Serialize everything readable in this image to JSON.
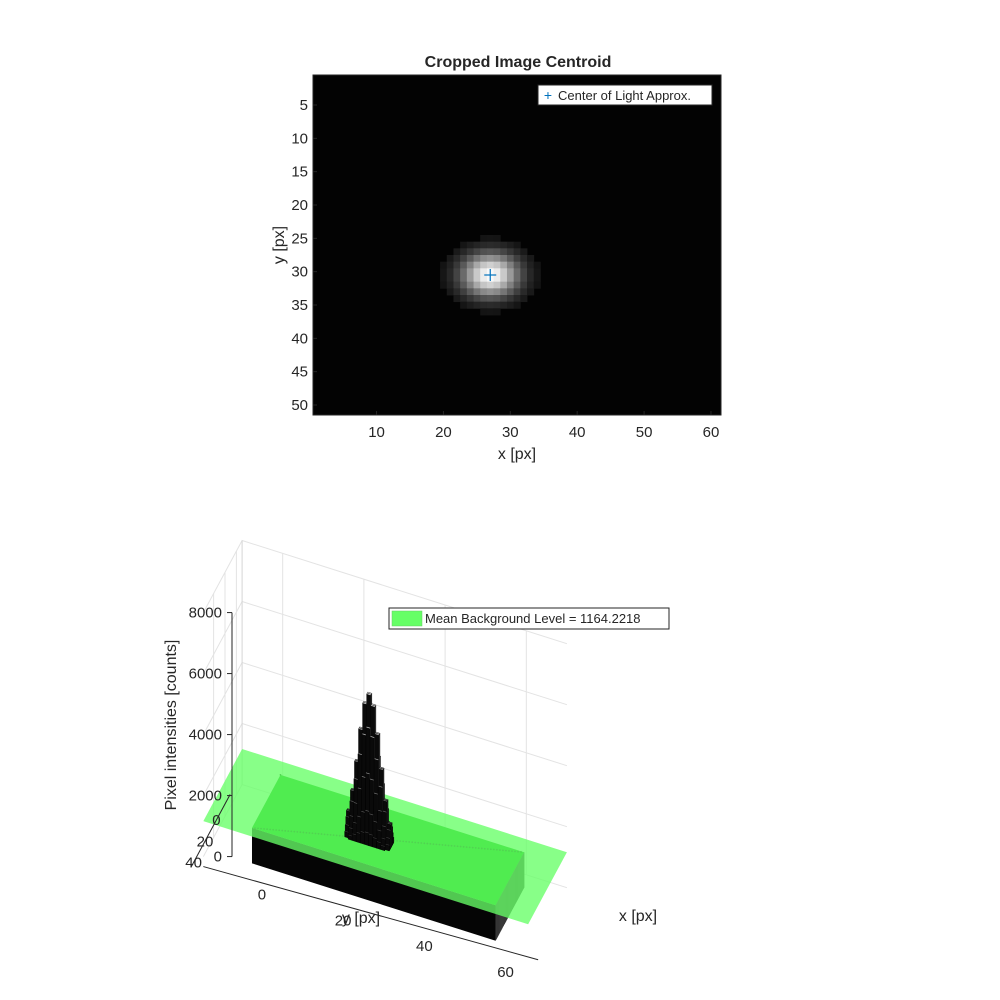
{
  "chart_data": [
    {
      "type": "heatmap",
      "title": "Cropped Image Centroid",
      "xlabel": "x [px]",
      "ylabel": "y [px]",
      "xlim": [
        0.5,
        61.5
      ],
      "ylim": [
        0.5,
        51.5
      ],
      "y_reversed": true,
      "xticks": [
        10,
        20,
        30,
        40,
        50,
        60
      ],
      "yticks": [
        5,
        10,
        15,
        20,
        25,
        30,
        35,
        40,
        45,
        50
      ],
      "colormap": "gray",
      "spot": {
        "x": 27,
        "y": 30.5,
        "sigma_x": 2.6,
        "sigma_y": 2.0
      },
      "series": [
        {
          "name": "Center of Light Approx.",
          "x": 27,
          "y": 30.5,
          "marker": "+",
          "color": "#0072BD"
        }
      ],
      "legend_position": "top-right"
    },
    {
      "type": "surface",
      "ylabel": "Pixel intensities [counts]",
      "xlabel": "x [px]",
      "zlabel_y": "y [px]",
      "x_axis_label": "x [px]",
      "y_axis_label": "y [px]",
      "z_axis_label": "Pixel intensities [counts]",
      "zlim": [
        0,
        8000
      ],
      "zticks": [
        0,
        2000,
        4000,
        6000,
        8000
      ],
      "xticks": [
        0,
        20,
        40,
        60
      ],
      "yticks": [
        0,
        20,
        40
      ],
      "xrange": [
        1,
        61
      ],
      "yrange": [
        1,
        51
      ],
      "peak": {
        "x": 27,
        "y": 30.5,
        "height": 6100
      },
      "background_level": 1164.2218,
      "plane_color": "#66FF66",
      "surface_color": "#00AA00",
      "series": [
        {
          "name": "Mean Background Level = 1164.2218"
        }
      ],
      "legend_position": "top"
    }
  ]
}
